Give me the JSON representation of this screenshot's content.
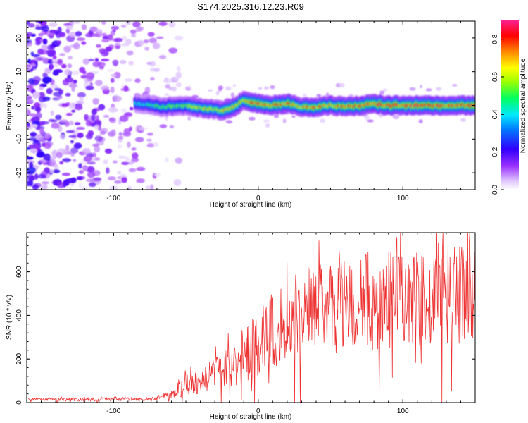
{
  "title": "S174.2025.316.12.23.R09",
  "chart_data": [
    {
      "type": "heatmap",
      "name": "spectrogram",
      "xlabel": "Height of straight line (km)",
      "ylabel": "Frequency (Hz)",
      "xlim": [
        -160,
        150
      ],
      "ylim": [
        -25,
        25
      ],
      "x_ticks": [
        -100,
        0,
        100
      ],
      "y_ticks": [
        -20,
        -10,
        0,
        10,
        20
      ],
      "colorbar": {
        "label": "Normalized spectral amplitude",
        "range": [
          0,
          0.9
        ],
        "ticks": [
          0.0,
          0.2,
          0.4,
          0.6,
          0.8
        ],
        "colors": [
          "#ffffff",
          "#9a30ff",
          "#0000ff",
          "#00e0ff",
          "#00ff40",
          "#ffff00",
          "#ff8000",
          "#ff0000",
          "#ff1a90"
        ]
      },
      "ridge": {
        "description_x": [
          -85,
          -75,
          -65,
          -55,
          -45,
          -35,
          -25,
          -20,
          -15,
          -10,
          -5,
          0,
          10,
          20,
          30,
          40,
          50,
          60,
          70,
          80,
          90,
          100,
          110,
          120,
          130,
          150
        ],
        "freq_hz": [
          0.5,
          0.0,
          -0.5,
          0.0,
          -0.5,
          -1.0,
          -1.5,
          -1.0,
          0.0,
          1.5,
          1.0,
          0.5,
          0.0,
          0.5,
          -0.5,
          -0.5,
          0.0,
          -0.5,
          0.0,
          0.5,
          0.0,
          0.0,
          0.0,
          0.0,
          0.0,
          0.0
        ],
        "amplitude": [
          0.45,
          0.5,
          0.55,
          0.6,
          0.65,
          0.7,
          0.7,
          0.75,
          0.7,
          0.75,
          0.8,
          0.8,
          0.8,
          0.8,
          0.75,
          0.8,
          0.75,
          0.8,
          0.8,
          0.85,
          0.85,
          0.85,
          0.85,
          0.85,
          0.8,
          0.8
        ]
      },
      "noise_region_x": [
        -160,
        -75
      ]
    },
    {
      "type": "line",
      "name": "snr",
      "color": "#ee3333",
      "xlabel": "Height of straight line (km)",
      "ylabel": "SNR (10 * v/v)",
      "xlim": [
        -160,
        150
      ],
      "ylim": [
        0,
        780
      ],
      "x_ticks": [
        -100,
        0,
        100
      ],
      "y_ticks": [
        0,
        200,
        400,
        600
      ],
      "series": [
        {
          "name": "SNR",
          "x": [
            -160,
            -140,
            -120,
            -100,
            -80,
            -70,
            -60,
            -55,
            -50,
            -40,
            -30,
            -20,
            -10,
            0,
            10,
            20,
            30,
            40,
            50,
            60,
            70,
            80,
            90,
            100,
            110,
            120,
            130,
            140,
            150
          ],
          "mean": [
            15,
            14,
            15,
            15,
            16,
            20,
            35,
            60,
            80,
            100,
            130,
            170,
            220,
            270,
            330,
            400,
            410,
            420,
            430,
            440,
            450,
            460,
            470,
            480,
            490,
            500,
            500,
            510,
            510
          ],
          "spread": [
            8,
            8,
            8,
            8,
            8,
            10,
            25,
            40,
            50,
            60,
            80,
            100,
            130,
            150,
            180,
            200,
            200,
            210,
            210,
            220,
            220,
            220,
            230,
            230,
            230,
            240,
            240,
            240,
            240
          ]
        }
      ]
    }
  ]
}
